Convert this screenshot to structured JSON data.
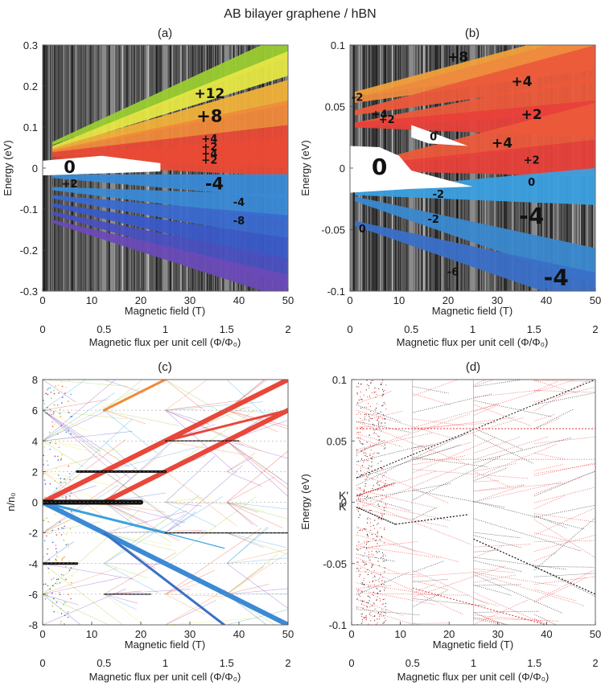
{
  "title": "AB bilayer graphene / hBN",
  "chart_data": [
    {
      "id": "a",
      "type": "line",
      "panel_label": "(a)",
      "title": "",
      "xlabel": "Magnetic field (T)",
      "x2label": "Magnetic flux per unit cell (Φ/Φ₀)",
      "ylabel": "Energy (eV)",
      "xlim": [
        0,
        50
      ],
      "ylim": [
        -0.3,
        0.3
      ],
      "x_ticks": [
        "0",
        "10",
        "20",
        "30",
        "40",
        "50"
      ],
      "x2_ticks": [
        "0",
        "0.5",
        "1",
        "1.5",
        "2"
      ],
      "y_ticks": [
        "-0.3",
        "-0.2",
        "-0.1",
        "0",
        "0.1",
        "0.2",
        "0.3"
      ],
      "background": "#555555",
      "annotations": [
        {
          "text": "+12",
          "x": 34,
          "y": 0.18,
          "size": "medium"
        },
        {
          "text": "+8",
          "x": 34,
          "y": 0.125,
          "size": "large"
        },
        {
          "text": "+4",
          "x": 34,
          "y": 0.07,
          "size": "small"
        },
        {
          "text": "+2",
          "x": 34,
          "y": 0.05,
          "size": "small"
        },
        {
          "text": "+4",
          "x": 34,
          "y": 0.033,
          "size": "small"
        },
        {
          "text": "+2",
          "x": 34,
          "y": 0.018,
          "size": "small"
        },
        {
          "text": "0",
          "x": 5.5,
          "y": 0.0,
          "size": "large"
        },
        {
          "text": "+2",
          "x": 5.5,
          "y": -0.04,
          "size": "small"
        },
        {
          "text": "-4",
          "x": 35,
          "y": -0.04,
          "size": "large"
        },
        {
          "text": "-4",
          "x": 40,
          "y": -0.085,
          "size": "small"
        },
        {
          "text": "-8",
          "x": 40,
          "y": -0.13,
          "size": "small"
        }
      ],
      "bands": [
        {
          "color": "#9acd32",
          "y0": 0.06,
          "y1": 0.3
        },
        {
          "color": "#e6e645",
          "y0": 0.05,
          "y1": 0.255
        },
        {
          "color": "#f0b13a",
          "y0": 0.045,
          "y1": 0.185
        },
        {
          "color": "#f08a3a",
          "y0": 0.04,
          "y1": 0.135
        },
        {
          "color": "#e84a36",
          "y0": 0.035,
          "y1": 0.075
        },
        {
          "color": "#e84a36",
          "y0": 0.03,
          "y1": 0.045
        },
        {
          "color": "#e84a36",
          "y0": 0.02,
          "y1": 0.03
        },
        {
          "color": "#e84a36",
          "y0": 0.012,
          "y1": 0.01
        },
        {
          "color": "#3a8ad6",
          "y0": -0.02,
          "y1": -0.045
        },
        {
          "color": "#3a8ad6",
          "y0": -0.05,
          "y1": -0.095
        },
        {
          "color": "#3a6ad0",
          "y0": -0.07,
          "y1": -0.145
        },
        {
          "color": "#3a5ac8",
          "y0": -0.09,
          "y1": -0.2
        },
        {
          "color": "#4a50c0",
          "y0": -0.11,
          "y1": -0.25
        },
        {
          "color": "#6a4ab8",
          "y0": -0.13,
          "y1": -0.29
        }
      ]
    },
    {
      "id": "b",
      "type": "line",
      "panel_label": "(b)",
      "xlabel": "Magnetic field (T)",
      "x2label": "Magnetic flux per unit cell (Φ/Φ₀)",
      "ylabel": "Energy (eV)",
      "xlim": [
        0,
        50
      ],
      "ylim": [
        -0.1,
        0.1
      ],
      "x_ticks": [
        "0",
        "10",
        "20",
        "30",
        "40",
        "50"
      ],
      "x2_ticks": [
        "0",
        "0.5",
        "1",
        "1.5",
        "2"
      ],
      "y_ticks": [
        "-0.1",
        "-0.05",
        "0",
        "0.05",
        "0.1"
      ],
      "background": "#555555",
      "annotations": [
        {
          "text": "+8",
          "x": 22,
          "y": 0.09,
          "size": "medium"
        },
        {
          "text": "+4",
          "x": 35,
          "y": 0.07,
          "size": "medium"
        },
        {
          "text": "+2",
          "x": 37,
          "y": 0.043,
          "size": "medium"
        },
        {
          "text": "+4",
          "x": 31,
          "y": 0.02,
          "size": "medium"
        },
        {
          "text": "+2",
          "x": 37,
          "y": 0.006,
          "size": "small"
        },
        {
          "text": "0",
          "x": 37,
          "y": -0.012,
          "size": "small"
        },
        {
          "text": "-2",
          "x": 1.5,
          "y": 0.057,
          "size": "small"
        },
        {
          "text": "+4",
          "x": 6,
          "y": 0.043,
          "size": "small"
        },
        {
          "text": "+2",
          "x": 7.5,
          "y": 0.039,
          "size": "small"
        },
        {
          "text": "0",
          "x": 17,
          "y": 0.025,
          "size": "small"
        },
        {
          "text": "0",
          "x": 6,
          "y": 0.0,
          "size": "xlarge"
        },
        {
          "text": "-2",
          "x": 18,
          "y": -0.022,
          "size": "small"
        },
        {
          "text": "-4",
          "x": 37,
          "y": -0.04,
          "size": "xlarge"
        },
        {
          "text": "-2",
          "x": 17,
          "y": -0.042,
          "size": "small"
        },
        {
          "text": "0",
          "x": 2.5,
          "y": -0.05,
          "size": "small"
        },
        {
          "text": "-6",
          "x": 21,
          "y": -0.085,
          "size": "small"
        },
        {
          "text": "-4",
          "x": 42,
          "y": -0.09,
          "size": "xlarge"
        }
      ],
      "bands": [
        {
          "color": "#f0a03a",
          "y0": 0.06,
          "y1": 0.1
        },
        {
          "color": "#ee8a3e",
          "y0": 0.055,
          "y1": 0.095
        },
        {
          "color": "#ec5a3a",
          "y0": 0.045,
          "y1": 0.085
        },
        {
          "color": "#ec5a3a",
          "y0": 0.035,
          "y1": 0.06
        },
        {
          "color": "#e8403a",
          "y0": 0.035,
          "y1": 0.04
        },
        {
          "color": "#ec5a3a",
          "y0": 0.0,
          "y1": 0.038
        },
        {
          "color": "#e8403a",
          "y0": 0.0,
          "y1": 0.008
        },
        {
          "color": "#3aa0e0",
          "y0": -0.02,
          "y1": -0.015
        },
        {
          "color": "#3a88d0",
          "y0": -0.025,
          "y1": -0.08
        },
        {
          "color": "#3a70c8",
          "y0": -0.045,
          "y1": -0.1
        }
      ]
    },
    {
      "id": "c",
      "type": "line",
      "panel_label": "(c)",
      "xlabel": "Magnetic field (T)",
      "x2label": "Magnetic flux per unit cell (Φ/Φ₀)",
      "ylabel": "n/n₀",
      "xlim": [
        0,
        50
      ],
      "ylim": [
        -8,
        8
      ],
      "x_ticks": [
        "0",
        "10",
        "20",
        "30",
        "40",
        "50"
      ],
      "x2_ticks": [
        "0",
        "0.5",
        "1",
        "1.5",
        "2"
      ],
      "y_ticks": [
        "-8",
        "-6",
        "-4",
        "-2",
        "0",
        "2",
        "4",
        "6",
        "8"
      ],
      "background": "#ffffff",
      "gaps": [
        {
          "color": "#e8473a",
          "from": [
            0,
            0
          ],
          "to": [
            50,
            8
          ],
          "width": "thick"
        },
        {
          "color": "#e8473a",
          "from": [
            0,
            0
          ],
          "to": [
            25,
            4
          ],
          "width": "thick"
        },
        {
          "color": "#e8473a",
          "from": [
            12.5,
            0
          ],
          "to": [
            50,
            6
          ],
          "width": "thick"
        },
        {
          "color": "#e8473a",
          "from": [
            25,
            2
          ],
          "to": [
            50,
            6
          ],
          "width": "medium"
        },
        {
          "color": "#e8473a",
          "from": [
            25,
            4
          ],
          "to": [
            50,
            6
          ],
          "width": "medium"
        },
        {
          "color": "#f08a3a",
          "from": [
            12.5,
            6
          ],
          "to": [
            25,
            8
          ],
          "width": "medium"
        },
        {
          "color": "#3a8ad6",
          "from": [
            0,
            0
          ],
          "to": [
            50,
            -8
          ],
          "width": "thick"
        },
        {
          "color": "#3aa0e0",
          "from": [
            0,
            0
          ],
          "to": [
            25,
            -2
          ],
          "width": "medium"
        },
        {
          "color": "#3aa0e0",
          "from": [
            25,
            -2
          ],
          "to": [
            37,
            -3
          ],
          "width": "thin"
        },
        {
          "color": "#3a70c8",
          "from": [
            12.5,
            -2
          ],
          "to": [
            37,
            -8
          ],
          "width": "medium"
        },
        {
          "color": "#111111",
          "from": [
            0,
            0
          ],
          "to": [
            20,
            0
          ],
          "width": "thick"
        },
        {
          "color": "#111111",
          "from": [
            7,
            2
          ],
          "to": [
            25,
            2
          ],
          "width": "medium"
        },
        {
          "color": "#111111",
          "from": [
            0,
            -4
          ],
          "to": [
            7,
            -4
          ],
          "width": "medium"
        },
        {
          "color": "#111111",
          "from": [
            25,
            -2
          ],
          "to": [
            50,
            -2
          ],
          "width": "thin"
        },
        {
          "color": "#111111",
          "from": [
            25,
            4
          ],
          "to": [
            40,
            4
          ],
          "width": "thin"
        },
        {
          "color": "#111111",
          "from": [
            12.5,
            -6
          ],
          "to": [
            22,
            -6
          ],
          "width": "thin"
        }
      ]
    },
    {
      "id": "d",
      "type": "scatter",
      "panel_label": "(d)",
      "xlabel": "Magnetic field (T)",
      "x2label": "Magnetic flux per unit cell (Φ/Φ₀)",
      "ylabel": "Energy (eV)",
      "xlim": [
        0,
        50
      ],
      "ylim": [
        -0.1,
        0.1
      ],
      "x_ticks": [
        "0",
        "10",
        "20",
        "30",
        "40",
        "50"
      ],
      "x2_ticks": [
        "0",
        "0.5",
        "1",
        "1.5",
        "2"
      ],
      "y_ticks": [
        "-0.1",
        "-0.05",
        "0",
        "0.05",
        "0.1"
      ],
      "background": "#ffffff",
      "legend": [
        {
          "text": "K'",
          "color": "#e02020"
        },
        {
          "text": "K",
          "color": "#111111"
        }
      ],
      "series": [
        {
          "name": "K'",
          "color": "#e03030"
        },
        {
          "name": "K",
          "color": "#111111"
        }
      ]
    }
  ]
}
